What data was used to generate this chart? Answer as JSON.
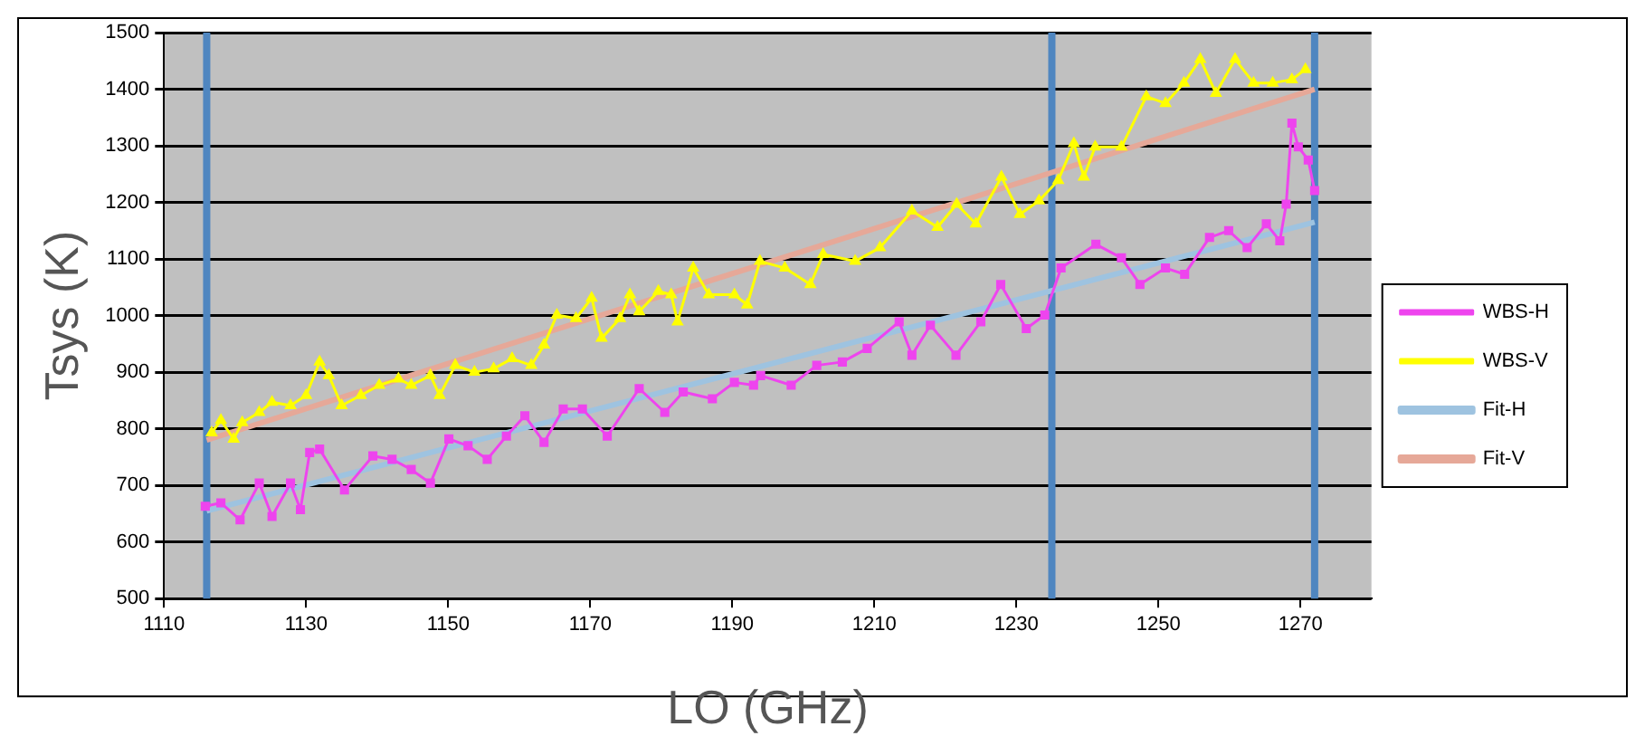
{
  "chart_data": {
    "type": "line",
    "xlabel": "LO (GHz)",
    "ylabel": "Tsys (K)",
    "xlim": [
      1110,
      1280
    ],
    "xticks": [
      1110,
      1130,
      1150,
      1170,
      1190,
      1210,
      1230,
      1250,
      1270
    ],
    "ylim": [
      500,
      1500
    ],
    "yticks": [
      500,
      600,
      700,
      800,
      900,
      1000,
      1100,
      1200,
      1300,
      1400,
      1500
    ],
    "grid": "y",
    "legend": "right",
    "ref_lines": [
      {
        "axis": "x",
        "value": 1116,
        "color": "#4f86c0"
      },
      {
        "axis": "x",
        "value": 1235,
        "color": "#4f86c0"
      },
      {
        "axis": "x",
        "value": 1272,
        "color": "#4f86c0"
      }
    ],
    "series": [
      {
        "name": "WBS-H",
        "color": "#ee44ee",
        "marker": "square",
        "x": [
          1115.8,
          1118,
          1120.7,
          1123.4,
          1125.2,
          1127.8,
          1129.2,
          1130.5,
          1131.9,
          1135.4,
          1139.4,
          1142.1,
          1144.8,
          1147.5,
          1150.1,
          1152.8,
          1155.5,
          1158.2,
          1160.8,
          1163.5,
          1166.2,
          1168.9,
          1172.4,
          1176.9,
          1180.5,
          1183.1,
          1187.2,
          1190.3,
          1193,
          1194,
          1198.3,
          1201.9,
          1205.5,
          1209,
          1213.5,
          1215.3,
          1217.9,
          1221.5,
          1225,
          1227.8,
          1231.4,
          1234,
          1236.3,
          1241.2,
          1244.8,
          1247.4,
          1251,
          1253.7,
          1257.2,
          1259.9,
          1262.5,
          1265.2,
          1267.1,
          1268,
          1268.8,
          1269.7,
          1271.1,
          1272
        ],
        "values": [
          663,
          669,
          639,
          704,
          645,
          704,
          657,
          758,
          764,
          692,
          752,
          746,
          728,
          704,
          782,
          770,
          746,
          787,
          823,
          776,
          835,
          835,
          787,
          871,
          829,
          865,
          853,
          882,
          877,
          894,
          877,
          912,
          918,
          942,
          989,
          930,
          983,
          930,
          989,
          1055,
          977,
          1001,
          1084,
          1126,
          1102,
          1055,
          1084,
          1073,
          1138,
          1150,
          1120,
          1162,
          1132,
          1197,
          1340,
          1298,
          1275,
          1221
        ]
      },
      {
        "name": "WBS-V",
        "color": "#ffff00",
        "marker": "triangle",
        "x": [
          1116.7,
          1118,
          1119.8,
          1121,
          1123.4,
          1125.2,
          1127.8,
          1130,
          1131.9,
          1133.2,
          1135,
          1137.7,
          1140.3,
          1143,
          1144.8,
          1147.5,
          1148.8,
          1151,
          1153.7,
          1156.4,
          1159,
          1161.7,
          1163.5,
          1165.3,
          1168,
          1170.2,
          1171.6,
          1174.2,
          1175.6,
          1176.9,
          1179.6,
          1181.4,
          1182.3,
          1184.5,
          1186.7,
          1190.3,
          1192.1,
          1193.9,
          1197.4,
          1201,
          1202.8,
          1207.3,
          1210.8,
          1215.3,
          1218.9,
          1221.6,
          1224.3,
          1227.9,
          1230.5,
          1233.2,
          1235.9,
          1238.1,
          1239.5,
          1241.1,
          1244.8,
          1248.3,
          1251,
          1253.6,
          1255.9,
          1258.1,
          1260.8,
          1263.4,
          1266.1,
          1268.8,
          1270.7
        ],
        "values": [
          793,
          815,
          782,
          811,
          829,
          847,
          841,
          859,
          918,
          894,
          841,
          859,
          877,
          888,
          877,
          894,
          859,
          912,
          900,
          906,
          924,
          912,
          948,
          1001,
          995,
          1031,
          960,
          995,
          1037,
          1007,
          1043,
          1037,
          989,
          1084,
          1037,
          1037,
          1019,
          1096,
          1084,
          1055,
          1108,
          1096,
          1120,
          1185,
          1156,
          1197,
          1162,
          1245,
          1179,
          1203,
          1239,
          1304,
          1245,
          1298,
          1298,
          1387,
          1375,
          1411,
          1453,
          1393,
          1453,
          1411,
          1411,
          1417,
          1435
        ]
      },
      {
        "name": "Fit-H",
        "color": "#9ec3e0",
        "marker": "none",
        "x": [
          1116,
          1272
        ],
        "values": [
          655,
          1165
        ]
      },
      {
        "name": "Fit-V",
        "color": "#e6a898",
        "marker": "none",
        "x": [
          1116,
          1272
        ],
        "values": [
          780,
          1400
        ]
      }
    ]
  }
}
